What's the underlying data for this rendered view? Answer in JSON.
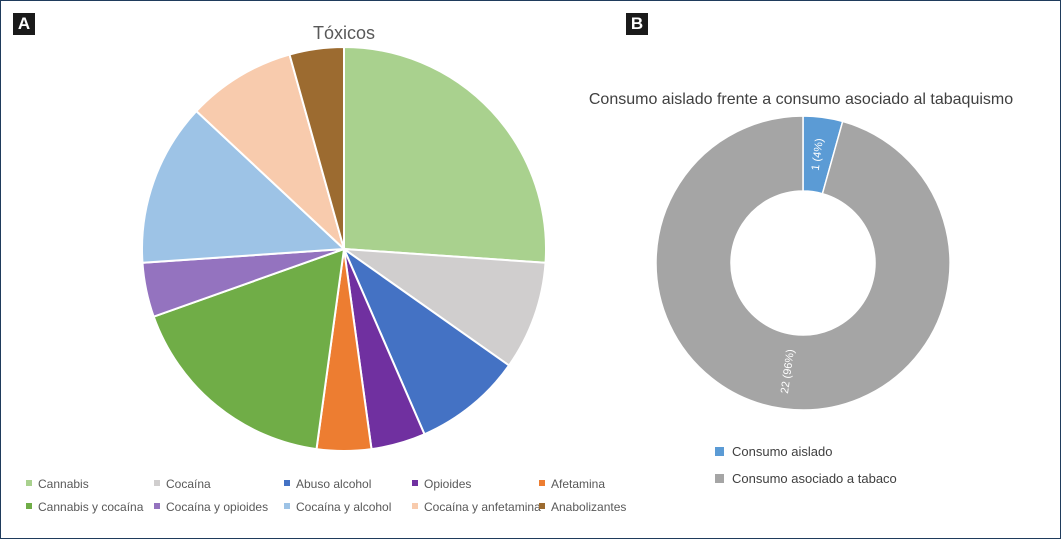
{
  "panels": {
    "a": "A",
    "b": "B"
  },
  "chart_data": [
    {
      "type": "pie",
      "title": "Tóxicos",
      "categories": [
        "Cannabis",
        "Cocaína",
        "Abuso alcohol",
        "Opioides",
        "Afetamina",
        "Cannabis y cocaína",
        "Cocaína y opioides",
        "Cocaína y alcohol",
        "Cocaína y anfetamina",
        "Anabolizantes"
      ],
      "values": [
        6,
        2,
        2,
        1,
        1,
        4,
        1,
        3,
        2,
        1
      ],
      "colors": [
        "#a9d18e",
        "#d0cece",
        "#4472c4",
        "#7030a0",
        "#ed7d31",
        "#70ad47",
        "#9473bf",
        "#9dc3e6",
        "#f8cbad",
        "#9c6b30"
      ],
      "legend_position": "bottom"
    },
    {
      "type": "pie",
      "subtype": "donut",
      "title": "Consumo aislado frente a consumo asociado al tabaquismo",
      "categories": [
        "Consumo aislado",
        "Consumo asociado a tabaco"
      ],
      "values": [
        1,
        22
      ],
      "data_labels": [
        "1 (4%)",
        "22 (96%)"
      ],
      "colors": [
        "#5b9bd5",
        "#a5a5a5"
      ],
      "legend_position": "bottom-left"
    }
  ]
}
